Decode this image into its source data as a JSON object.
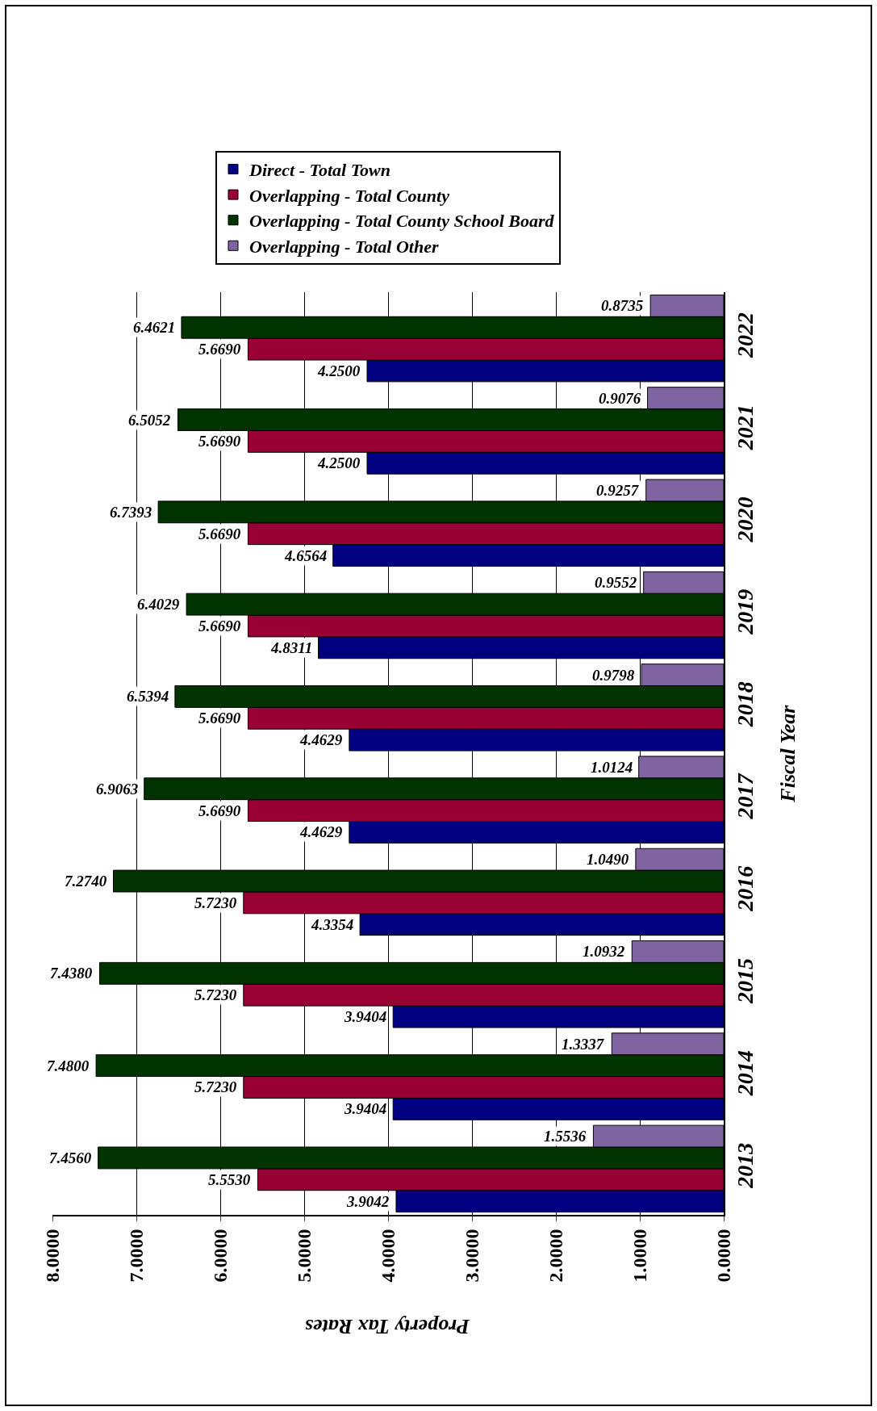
{
  "chart_data": {
    "type": "bar",
    "orientation": "horizontal",
    "xlabel": "Property Tax Rates",
    "ylabel": "Fiscal Year",
    "categories": [
      "2022",
      "2021",
      "2020",
      "2019",
      "2018",
      "2017",
      "2016",
      "2015",
      "2014",
      "2013"
    ],
    "series": [
      {
        "name": "Direct - Total Town",
        "color": "#000080",
        "values": [
          4.25,
          4.25,
          4.6564,
          4.8311,
          4.4629,
          4.4629,
          4.3354,
          3.9404,
          3.9404,
          3.9042
        ],
        "value_labels": [
          "4.2500",
          "4.2500",
          "4.6564",
          "4.8311",
          "4.4629",
          "4.4629",
          "4.3354",
          "3.9404",
          "3.9404",
          "3.9042"
        ]
      },
      {
        "name": "Overlapping - Total County",
        "color": "#990033",
        "values": [
          5.669,
          5.669,
          5.669,
          5.669,
          5.669,
          5.669,
          5.723,
          5.723,
          5.723,
          5.553
        ],
        "value_labels": [
          "5.6690",
          "5.6690",
          "5.6690",
          "5.6690",
          "5.6690",
          "5.6690",
          "5.7230",
          "5.7230",
          "5.7230",
          "5.5530"
        ]
      },
      {
        "name": "Overlapping - Total County School Board",
        "color": "#003300",
        "values": [
          6.4621,
          6.5052,
          6.7393,
          6.4029,
          6.5394,
          6.9063,
          7.274,
          7.438,
          7.48,
          7.456
        ],
        "value_labels": [
          "6.4621",
          "6.5052",
          "6.7393",
          "6.4029",
          "6.5394",
          "6.9063",
          "7.2740",
          "7.4380",
          "7.4800",
          "7.4560"
        ]
      },
      {
        "name": "Overlapping - Total Other",
        "color": "#8064a2",
        "values": [
          0.8735,
          0.9076,
          0.9257,
          0.9552,
          0.9798,
          1.0124,
          1.049,
          1.0932,
          1.3337,
          1.5536
        ],
        "value_labels": [
          "0.8735",
          "0.9076",
          "0.9257",
          "0.9552",
          "0.9798",
          "1.0124",
          "1.0490",
          "1.0932",
          "1.3337",
          "1.5536"
        ]
      }
    ],
    "xlim": [
      8,
      0
    ],
    "xticks": [
      {
        "value": 8,
        "label": "8.0000"
      },
      {
        "value": 7,
        "label": "7.0000"
      },
      {
        "value": 6,
        "label": "6.0000"
      },
      {
        "value": 5,
        "label": "5.0000"
      },
      {
        "value": 4,
        "label": "4.0000"
      },
      {
        "value": 3,
        "label": "3.0000"
      },
      {
        "value": 2,
        "label": "2.0000"
      },
      {
        "value": 1,
        "label": "1.0000"
      },
      {
        "value": 0,
        "label": "0.0000"
      }
    ],
    "grid": "x",
    "legend": "top"
  }
}
